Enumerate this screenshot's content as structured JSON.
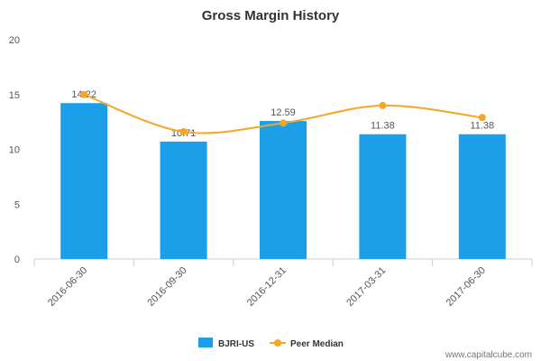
{
  "chart_data": {
    "type": "bar",
    "title": "Gross Margin History",
    "xlabel": "",
    "ylabel": "",
    "ylim": [
      0,
      20
    ],
    "yticks": [
      0,
      5,
      10,
      15,
      20
    ],
    "grid": false,
    "legend_position": "bottom-center",
    "categories": [
      "2016-06-30",
      "2016-09-30",
      "2016-12-31",
      "2017-03-31",
      "2017-06-30"
    ],
    "series": [
      {
        "name": "BJRI-US",
        "kind": "bar",
        "color": "#1a9fe8",
        "values": [
          14.22,
          10.71,
          12.59,
          11.38,
          11.38
        ],
        "labels": [
          "14.22",
          "10.71",
          "12.59",
          "11.38",
          "11.38"
        ]
      },
      {
        "name": "Peer Median",
        "kind": "line",
        "color": "#f5a623",
        "values": [
          15.0,
          11.6,
          12.4,
          14.0,
          12.9
        ]
      }
    ]
  },
  "watermark": "www.capitalcube.com"
}
